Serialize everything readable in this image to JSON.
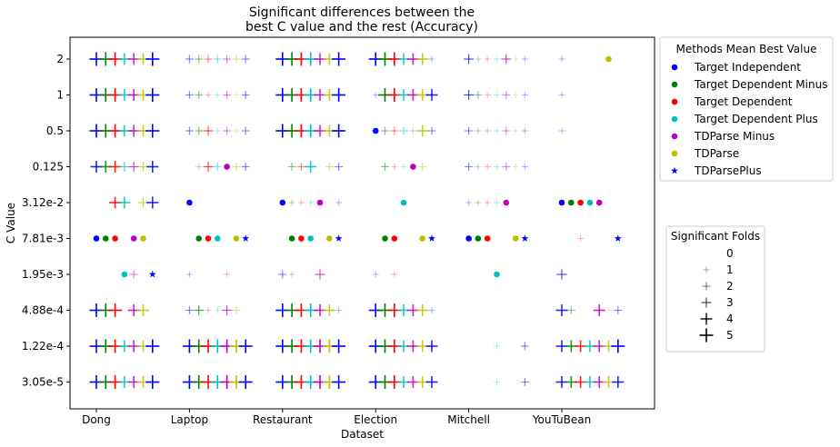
{
  "chart_data": {
    "type": "scatter",
    "title": "Significant differences between the\nbest C value and the rest (Accuracy)",
    "xlabel": "Dataset",
    "ylabel": "C Value",
    "categories": [
      "Dong",
      "Laptop",
      "Restaurant",
      "Election",
      "Mitchell",
      "YouTuBean"
    ],
    "c_values": [
      "2",
      "1",
      "0.5",
      "0.125",
      "3.12e-2",
      "7.81e-3",
      "1.95e-3",
      "4.88e-4",
      "1.22e-4",
      "3.05e-5"
    ],
    "legend_methods": {
      "title": "Methods Mean Best Value",
      "placement": "upper-right outside",
      "entries": [
        {
          "name": "Target Independent",
          "color": "#0000ff",
          "marker": "circle"
        },
        {
          "name": "Target Dependent Minus",
          "color": "#008000",
          "marker": "circle"
        },
        {
          "name": "Target Dependent",
          "color": "#ff0000",
          "marker": "circle"
        },
        {
          "name": "Target Dependent Plus",
          "color": "#00bfbf",
          "marker": "circle"
        },
        {
          "name": "TDParse Minus",
          "color": "#bf00bf",
          "marker": "circle"
        },
        {
          "name": "TDParse",
          "color": "#bfbf00",
          "marker": "circle"
        },
        {
          "name": "TDParsePlus",
          "color": "#0000ff",
          "marker": "star"
        }
      ]
    },
    "legend_folds": {
      "title": "Significant Folds",
      "placement": "right outside",
      "entries": [
        "0",
        "1",
        "2",
        "3",
        "4",
        "5"
      ]
    },
    "best_c_value": {
      "Dong": [
        "7.81e-3",
        "7.81e-3",
        "7.81e-3",
        "1.95e-3",
        "7.81e-3",
        "7.81e-3",
        "1.95e-3"
      ],
      "Laptop": [
        "3.12e-2",
        "7.81e-3",
        "7.81e-3",
        "7.81e-3",
        "0.125",
        "7.81e-3",
        "7.81e-3"
      ],
      "Restaurant": [
        "3.12e-2",
        "7.81e-3",
        "7.81e-3",
        "7.81e-3",
        "3.12e-2",
        "7.81e-3",
        "7.81e-3"
      ],
      "Election": [
        "0.5",
        "7.81e-3",
        "7.81e-3",
        "3.12e-2",
        "0.125",
        "7.81e-3",
        "7.81e-3"
      ],
      "Mitchell": [
        "7.81e-3",
        "7.81e-3",
        "7.81e-3",
        "1.95e-3",
        "3.12e-2",
        "7.81e-3",
        "7.81e-3"
      ],
      "YouTuBean": [
        "3.12e-2",
        "3.12e-2",
        "3.12e-2",
        "3.12e-2",
        "3.12e-2",
        "2",
        "7.81e-3"
      ]
    },
    "significant_folds": {
      "Dong": [
        [
          5,
          5,
          5,
          4,
          4,
          4,
          5
        ],
        [
          5,
          5,
          5,
          4,
          4,
          4,
          5
        ],
        [
          5,
          5,
          5,
          4,
          4,
          4,
          5
        ],
        [
          4,
          4,
          4,
          3,
          3,
          3,
          4
        ],
        [
          0,
          0,
          4,
          4,
          0,
          3,
          4
        ],
        [
          0,
          0,
          0,
          0,
          0,
          0,
          0
        ],
        [
          0,
          0,
          0,
          0,
          2,
          0,
          0
        ],
        [
          5,
          5,
          5,
          0,
          4,
          4,
          0
        ],
        [
          5,
          5,
          5,
          4,
          4,
          4,
          5
        ],
        [
          5,
          5,
          5,
          4,
          4,
          4,
          5
        ]
      ],
      "Laptop": [
        [
          2,
          2,
          2,
          2,
          2,
          2,
          2
        ],
        [
          2,
          2,
          1,
          1,
          2,
          1,
          2
        ],
        [
          2,
          2,
          3,
          1,
          2,
          1,
          2
        ],
        [
          0,
          1,
          3,
          2,
          0,
          2,
          2
        ],
        [
          0,
          0,
          0,
          0,
          0,
          0,
          0
        ],
        [
          0,
          0,
          0,
          0,
          0,
          0,
          0
        ],
        [
          1,
          0,
          0,
          0,
          1,
          0,
          0
        ],
        [
          2,
          3,
          1,
          1,
          3,
          2,
          0
        ],
        [
          5,
          5,
          5,
          5,
          5,
          5,
          5
        ],
        [
          5,
          5,
          5,
          5,
          5,
          5,
          5
        ]
      ],
      "Restaurant": [
        [
          5,
          5,
          5,
          5,
          4,
          4,
          5
        ],
        [
          5,
          5,
          5,
          5,
          4,
          4,
          5
        ],
        [
          5,
          5,
          5,
          5,
          4,
          4,
          5
        ],
        [
          0,
          2,
          2,
          4,
          0,
          2,
          2
        ],
        [
          0,
          1,
          1,
          1,
          0,
          0,
          1
        ],
        [
          0,
          0,
          0,
          0,
          0,
          0,
          0
        ],
        [
          2,
          1,
          0,
          0,
          3,
          0,
          0
        ],
        [
          5,
          5,
          5,
          5,
          4,
          4,
          1
        ],
        [
          5,
          5,
          5,
          5,
          5,
          5,
          5
        ],
        [
          5,
          5,
          5,
          5,
          5,
          5,
          5
        ]
      ],
      "Election": [
        [
          5,
          5,
          5,
          4,
          4,
          4,
          1
        ],
        [
          1,
          5,
          5,
          4,
          4,
          4,
          4
        ],
        [
          0,
          2,
          2,
          2,
          1,
          4,
          2
        ],
        [
          0,
          2,
          1,
          1,
          0,
          2,
          0
        ],
        [
          0,
          0,
          0,
          0,
          0,
          0,
          0
        ],
        [
          0,
          0,
          0,
          0,
          0,
          0,
          0
        ],
        [
          1,
          0,
          1,
          0,
          0,
          0,
          0
        ],
        [
          5,
          5,
          5,
          4,
          4,
          4,
          1
        ],
        [
          5,
          5,
          5,
          4,
          4,
          4,
          4
        ],
        [
          5,
          5,
          5,
          4,
          4,
          4,
          4
        ]
      ],
      "Mitchell": [
        [
          3,
          1,
          1,
          1,
          3,
          1,
          1
        ],
        [
          3,
          2,
          1,
          1,
          2,
          1,
          1
        ],
        [
          2,
          1,
          1,
          1,
          2,
          1,
          1
        ],
        [
          2,
          1,
          1,
          1,
          2,
          1,
          1
        ],
        [
          1,
          1,
          1,
          1,
          0,
          0,
          0
        ],
        [
          0,
          0,
          0,
          0,
          0,
          0,
          0
        ],
        [
          0,
          0,
          0,
          0,
          0,
          0,
          0
        ],
        [
          0,
          0,
          0,
          0,
          0,
          0,
          0
        ],
        [
          0,
          0,
          0,
          1,
          0,
          0,
          2
        ],
        [
          0,
          0,
          0,
          1,
          0,
          0,
          2
        ]
      ],
      "YouTuBean": [
        [
          1,
          0,
          0,
          0,
          0,
          0,
          0
        ],
        [
          1,
          0,
          0,
          0,
          0,
          0,
          0
        ],
        [
          1,
          0,
          0,
          0,
          0,
          0,
          0
        ],
        [
          0,
          0,
          0,
          0,
          0,
          0,
          0
        ],
        [
          0,
          0,
          0,
          0,
          0,
          0,
          0
        ],
        [
          0,
          0,
          1,
          0,
          0,
          0,
          0
        ],
        [
          3,
          0,
          0,
          0,
          0,
          0,
          0
        ],
        [
          4,
          2,
          0,
          0,
          4,
          1,
          2
        ],
        [
          4,
          4,
          4,
          4,
          4,
          4,
          5
        ],
        [
          4,
          4,
          4,
          4,
          4,
          4,
          4
        ]
      ]
    },
    "grid": false
  }
}
